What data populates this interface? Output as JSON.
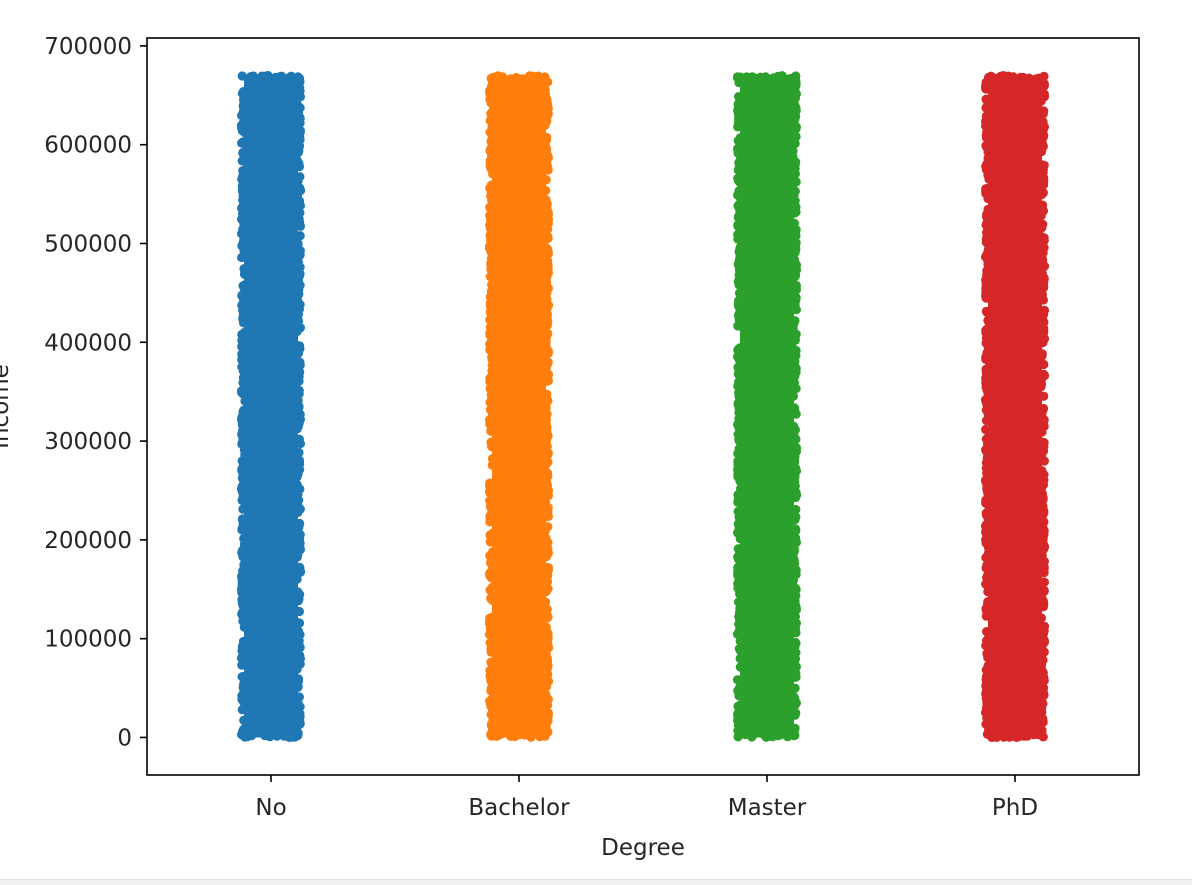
{
  "chart_data": {
    "type": "scatter",
    "subtype": "strip",
    "title": "",
    "xlabel": "Degree",
    "ylabel": "Income",
    "categories": [
      "No",
      "Bachelor",
      "Master",
      "PhD"
    ],
    "series": [
      {
        "category": "No",
        "color": "#1f77b4",
        "y_min": 0,
        "y_max": 670000
      },
      {
        "category": "Bachelor",
        "color": "#ff7f0e",
        "y_min": 0,
        "y_max": 670000
      },
      {
        "category": "Master",
        "color": "#2ca02c",
        "y_min": 0,
        "y_max": 670000
      },
      {
        "category": "PhD",
        "color": "#d62728",
        "y_min": 0,
        "y_max": 670000
      }
    ],
    "y_ticks": [
      0,
      100000,
      200000,
      300000,
      400000,
      500000,
      600000,
      700000
    ],
    "y_tick_labels": [
      "0",
      "100000",
      "200000",
      "300000",
      "400000",
      "500000",
      "600000",
      "700000"
    ],
    "ylim": [
      -38000,
      708000
    ],
    "grid": false,
    "legend": "none"
  }
}
